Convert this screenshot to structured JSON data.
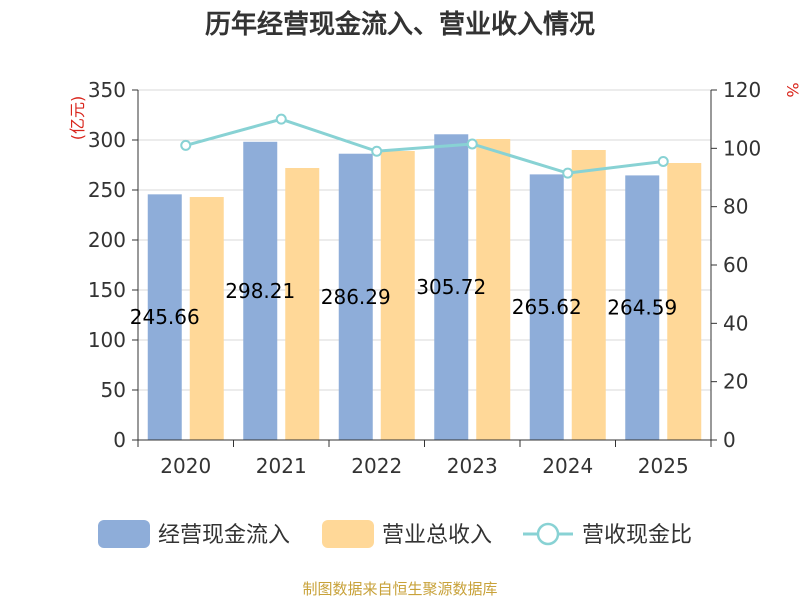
{
  "chart_data": {
    "type": "bar",
    "title": "历年经营现金流入、营业收入情况",
    "categories": [
      "2020",
      "2021",
      "2022",
      "2023",
      "2024",
      "2025"
    ],
    "y_left": {
      "unit_label": "(亿元)",
      "range": [
        0,
        350
      ],
      "ticks": [
        "0",
        "50",
        "100",
        "150",
        "200",
        "250",
        "300",
        "350"
      ]
    },
    "y_right": {
      "unit_label": "%",
      "range": [
        0,
        120
      ],
      "ticks": [
        "0",
        "20",
        "40",
        "60",
        "80",
        "100",
        "120"
      ]
    },
    "series": [
      {
        "name": "经营现金流入",
        "type": "bar",
        "axis": "left",
        "color": "#8eadd9",
        "values": [
          245.66,
          298.21,
          286.29,
          305.72,
          265.62,
          264.59
        ],
        "data_labels": [
          "245.66",
          "298.21",
          "286.29",
          "305.72",
          "265.62",
          "264.59"
        ]
      },
      {
        "name": "营业总收入",
        "type": "bar",
        "axis": "left",
        "color": "#ffd898",
        "values": [
          243,
          272,
          289,
          301,
          290,
          277
        ]
      },
      {
        "name": "营收现金比",
        "type": "line",
        "axis": "right",
        "color": "#88d2d4",
        "values": [
          101,
          110,
          99,
          101.5,
          91.5,
          95.5
        ]
      }
    ],
    "grid": true,
    "legend_position": "bottom"
  },
  "source_text": "制图数据来自恒生聚源数据库"
}
